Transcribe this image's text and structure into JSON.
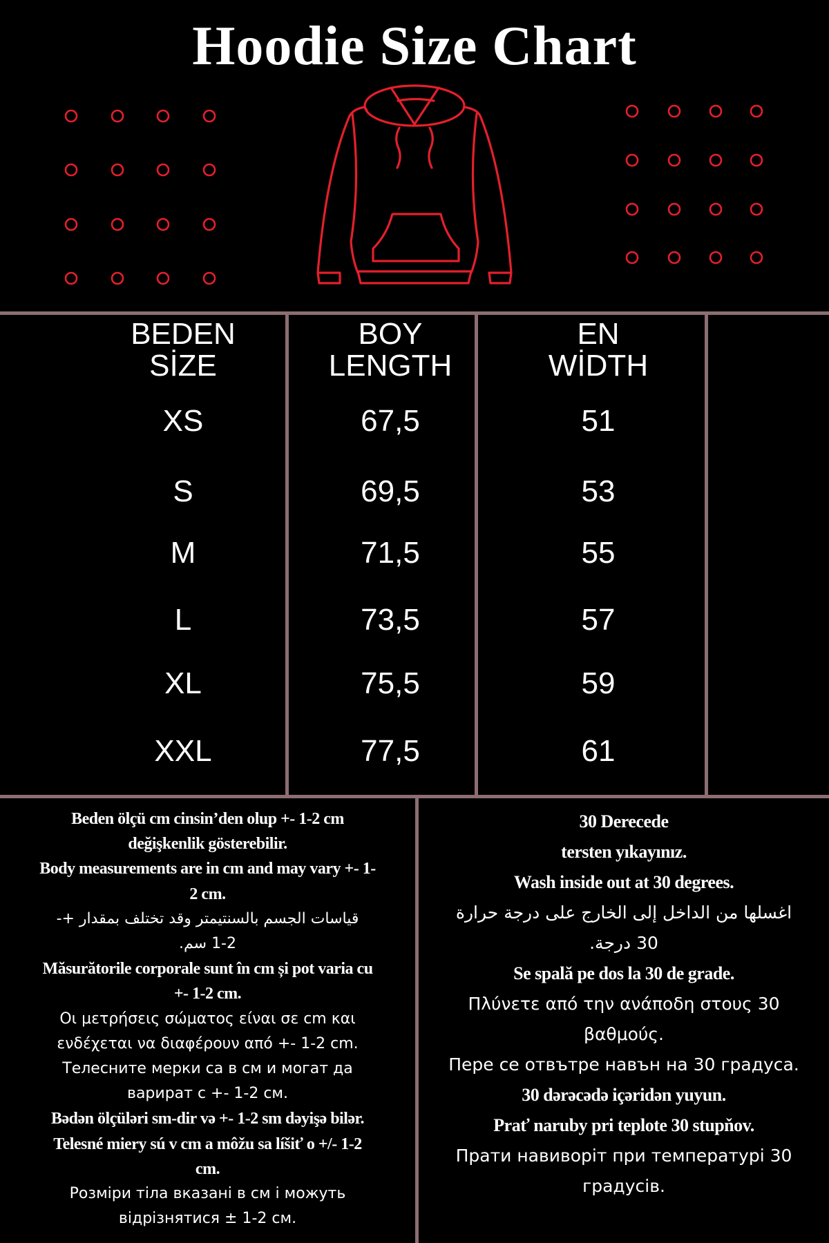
{
  "title": "Hoodie Size Chart",
  "colors": {
    "background": "#000000",
    "accent_red": "#e3202b",
    "grid_line": "#8c6e72",
    "text": "#ffffff"
  },
  "illustration": {
    "icon": "hoodie-outline-icon",
    "decoration": "red-circle-dot-grids"
  },
  "table": {
    "headers": [
      {
        "line1": "BEDEN",
        "line2": "SİZE"
      },
      {
        "line1": "BOY",
        "line2": "LENGTH"
      },
      {
        "line1": "EN",
        "line2": "WİDTH"
      }
    ],
    "rows": [
      {
        "size": "XS",
        "length": "67,5",
        "width": "51"
      },
      {
        "size": "S",
        "length": "69,5",
        "width": "53"
      },
      {
        "size": "M",
        "length": "71,5",
        "width": "55"
      },
      {
        "size": "L",
        "length": "73,5",
        "width": "57"
      },
      {
        "size": "XL",
        "length": "75,5",
        "width": "59"
      },
      {
        "size": "XXL",
        "length": "77,5",
        "width": "61"
      }
    ]
  },
  "notes": {
    "measurement_lines": [
      "Beden ölçü cm cinsin’den olup +- 1-2 cm",
      "değişkenlik gösterebilir.",
      "Body measurements are in cm and may vary +- 1-",
      "2 cm.",
      "قياسات الجسم بالسنتيمتر وقد تختلف بمقدار +-",
      "1-2 سم.",
      "Măsurătorile corporale sunt în cm și pot varia cu",
      "+- 1-2 cm.",
      "Οι μετρήσεις σώματος είναι σε cm και",
      "ενδέχεται να διαφέρουν από +- 1-2 cm.",
      "Телесните мерки са в см и могат да",
      "варират с +- 1-2 см.",
      "Bədən ölçüləri sm-dir və +- 1-2 sm dəyişə bilər.",
      "Telesné miery sú v cm a môžu sa líšiť o +/- 1-2",
      "cm.",
      "Розміри тіла вказані в см і можуть",
      "відрізнятися ± 1-2 см."
    ],
    "washing_lines": [
      "30 Derecede",
      "tersten yıkayınız.",
      "Wash inside out at 30 degrees.",
      "اغسلها من الداخل إلى الخارج على درجة حرارة",
      "30 درجة.",
      "Se spală pe dos la 30 de grade.",
      "Πλύνετε από την ανάποδη στους 30",
      "βαθμούς.",
      "Пере се отвътре навън на 30 градуса.",
      "30 dərəcədə içəridən yuyun.",
      "Prať naruby pri teplote 30 stupňov.",
      "Прати навиворіт при температурі 30",
      "градусів."
    ]
  }
}
